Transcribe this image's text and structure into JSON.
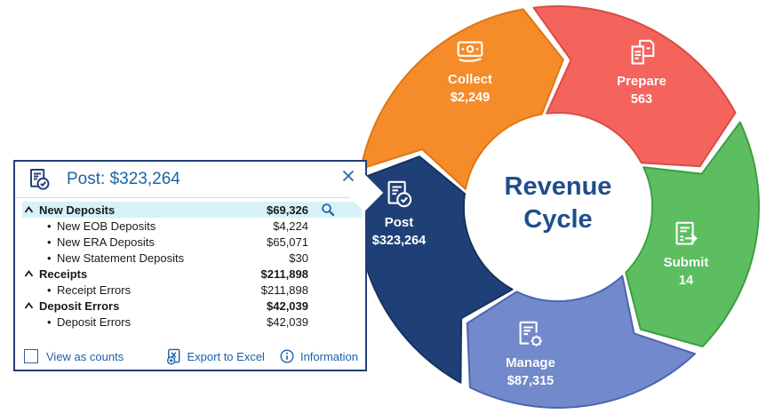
{
  "wheel": {
    "title": "Revenue Cycle",
    "segments": [
      {
        "id": "collect",
        "label": "Collect",
        "value": "$2,249",
        "fill": "#F68C29",
        "stroke": "#DE7616",
        "icon": "cash-icon"
      },
      {
        "id": "prepare",
        "label": "Prepare",
        "value": "563",
        "fill": "#F4635C",
        "stroke": "#DB4B47",
        "icon": "documents-icon"
      },
      {
        "id": "submit",
        "label": "Submit",
        "value": "14",
        "fill": "#5CBE60",
        "stroke": "#3D9E41",
        "icon": "document-arrow-icon"
      },
      {
        "id": "manage",
        "label": "Manage",
        "value": "$87,315",
        "fill": "#7289CB",
        "stroke": "#4A66B0",
        "icon": "document-gear-icon"
      },
      {
        "id": "post",
        "label": "Post",
        "value": "$323,264",
        "fill": "#1F4077",
        "stroke": "#16325E",
        "icon": "document-check-icon"
      }
    ]
  },
  "popup": {
    "title": "Post: $323,264",
    "rows": [
      {
        "type": "parent",
        "label": "New Deposits",
        "value": "$69,326",
        "highlighted": true,
        "has_search": true
      },
      {
        "type": "child",
        "label": "New EOB Deposits",
        "value": "$4,224"
      },
      {
        "type": "child",
        "label": "New ERA Deposits",
        "value": "$65,071"
      },
      {
        "type": "child",
        "label": "New Statement Deposits",
        "value": "$30"
      },
      {
        "type": "parent",
        "label": "Receipts",
        "value": "$211,898"
      },
      {
        "type": "child",
        "label": "Receipt Errors",
        "value": "$211,898"
      },
      {
        "type": "parent",
        "label": "Deposit Errors",
        "value": "$42,039"
      },
      {
        "type": "child",
        "label": "Deposit Errors",
        "value": "$42,039"
      }
    ],
    "footer": {
      "view_as_counts_label": "View as counts",
      "checkbox_checked": false,
      "export_label": "Export to Excel",
      "information_label": "Information"
    }
  },
  "colors": {
    "navy": "#1F4077",
    "accent_blue": "#1C63A8",
    "highlight_row": "#D5F2F8",
    "center_title": "#1F4E8C"
  }
}
